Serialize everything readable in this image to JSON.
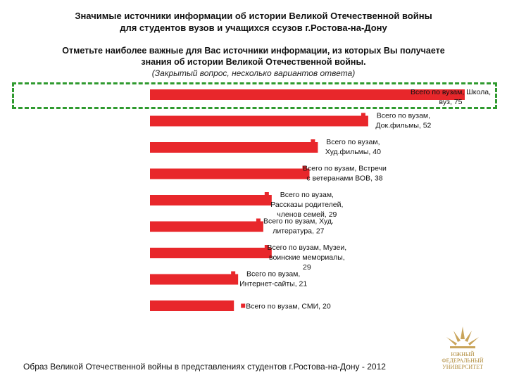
{
  "header": {
    "title_line1": "Значимые источники информации об истории Великой Отечественной войны",
    "title_line2": "для студентов вузов и учащихся ссузов г.Ростова-на-Дону"
  },
  "question": {
    "line1": "Отметьте наиболее важные для Вас источники информации, из которых Вы получаете",
    "line2": "знания об истории Великой Отечественной войны.",
    "note": "(Закрытый вопрос, несколько вариантов ответа)"
  },
  "chart_data": {
    "type": "bar",
    "orientation": "horizontal",
    "series": [
      {
        "name": "Всего по вузам",
        "color": "#e8272b"
      }
    ],
    "categories": [
      "Школа, вуз",
      "Док.фильмы",
      "Худ.фильмы",
      "Встречи с ветеранами ВОВ",
      "Рассказы родителей, членов семей",
      "Худ. литература",
      "Музеи, воинские мемориалы",
      "Интернет-сайты",
      "СМИ"
    ],
    "values": [
      75,
      52,
      40,
      38,
      29,
      27,
      29,
      21,
      20
    ],
    "data_labels": [
      [
        "Всего по вузам, Школа,",
        "вуз, 75"
      ],
      [
        "Всего по вузам,",
        "Док.фильмы, 52"
      ],
      [
        "Всего по вузам,",
        "Худ.фильмы, 40"
      ],
      [
        "Всего по вузам, Встречи",
        "с ветеранами ВОВ, 38"
      ],
      [
        "Всего по вузам,",
        "Рассказы родителей,",
        "членов семей, 29"
      ],
      [
        "Всего по вузам, Худ.",
        "литература, 27"
      ],
      [
        "Всего по вузам, Музеи,",
        "воинские мемориалы,",
        "29"
      ],
      [
        "Всего по вузам,",
        "Интернет-сайты, 21"
      ],
      [
        "Всего по вузам, СМИ, 20"
      ]
    ],
    "xlim": [
      0,
      75
    ],
    "legend": "none",
    "grid": false
  },
  "footer": {
    "caption": "Образ Великой Отечественной войны в представлениях студентов г.Ростова-на-Дону - 2012"
  },
  "logo": {
    "line1": "ЮЖНЫЙ",
    "line2": "ФЕДЕРАЛЬНЫЙ",
    "line3": "УНИВЕРСИТЕТ"
  }
}
